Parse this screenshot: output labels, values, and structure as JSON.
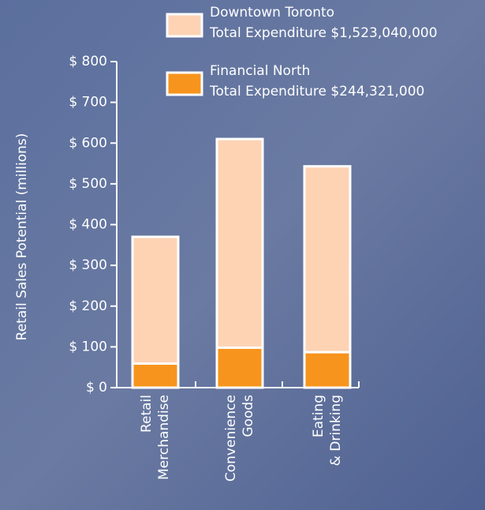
{
  "chart_data": {
    "type": "bar",
    "y_label": "Retail Sales Potential (millions)",
    "categories": [
      "Retail Merchandise",
      "Convenience Goods",
      "Eating & Drinking"
    ],
    "series": [
      {
        "name": "Downtown Toronto",
        "note": "Total Expenditure $1,523,040,000",
        "color": "#fdd3b4",
        "values": [
          370,
          610,
          543
        ]
      },
      {
        "name": "Financial North",
        "note": "Total Expenditure $244,321,000",
        "color": "#f7941d",
        "values": [
          59,
          98,
          87
        ]
      }
    ],
    "ylim": [
      0,
      800
    ],
    "yticks": [
      {
        "value": 0,
        "label": "$ 0"
      },
      {
        "value": 100,
        "label": "$ 100"
      },
      {
        "value": 200,
        "label": "$ 200"
      },
      {
        "value": 300,
        "label": "$ 300"
      },
      {
        "value": 400,
        "label": "$ 400"
      },
      {
        "value": 500,
        "label": "$ 500"
      },
      {
        "value": 600,
        "label": "$ 600"
      },
      {
        "value": 700,
        "label": "$ 700"
      },
      {
        "value": 800,
        "label": "$ 800"
      }
    ]
  }
}
